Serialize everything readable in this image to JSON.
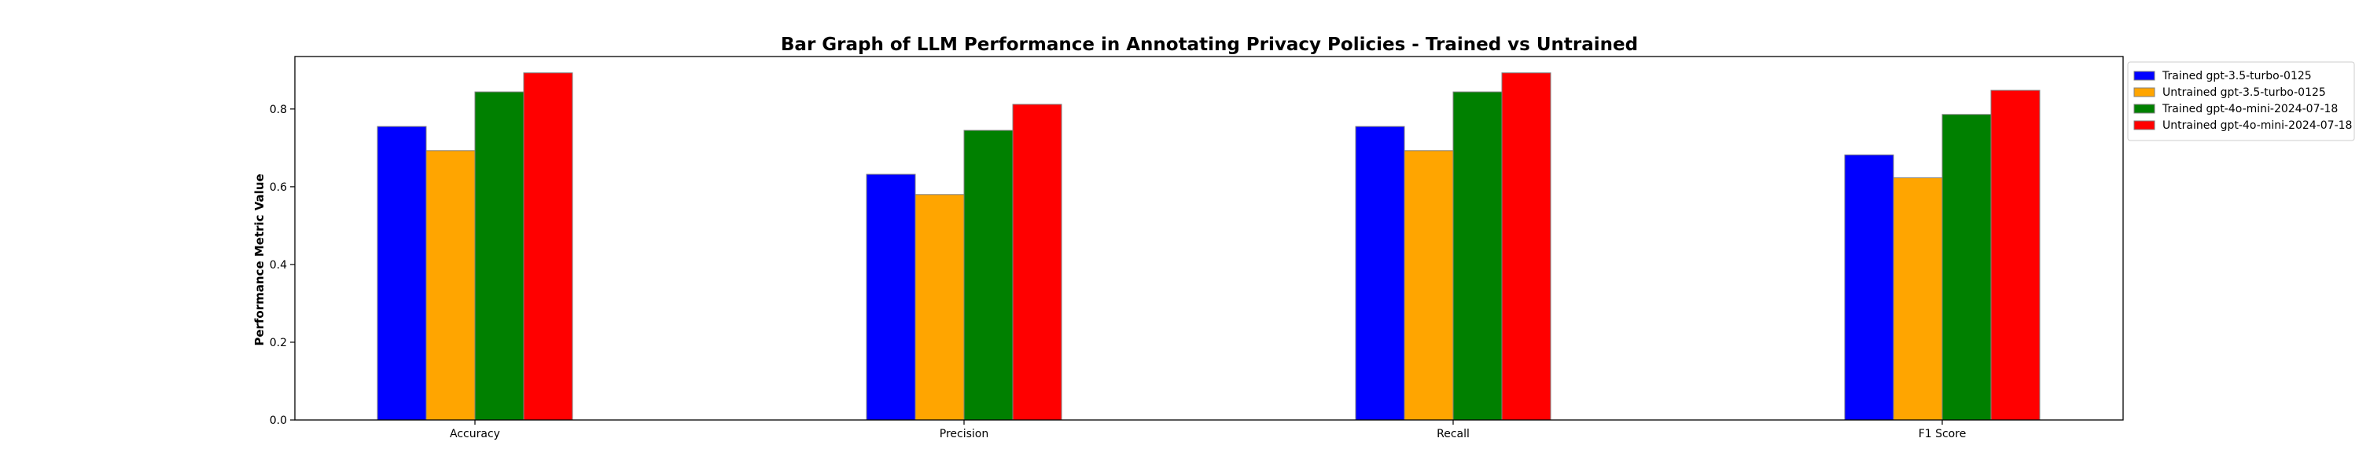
{
  "chart_data": {
    "type": "bar",
    "title": "Bar Graph of LLM Performance in Annotating Privacy Policies - Trained vs Untrained",
    "xlabel": "",
    "ylabel": "Performance Metric Value",
    "categories": [
      "Accuracy",
      "Precision",
      "Recall",
      "F1 Score"
    ],
    "ylim": [
      0,
      0.935
    ],
    "yticks": [
      "0.0",
      "0.2",
      "0.4",
      "0.6",
      "0.8"
    ],
    "grid": false,
    "legend_position": "outside-right-top",
    "series": [
      {
        "name": "Trained gpt-3.5-turbo-0125",
        "color": "#0000ff",
        "values": [
          0.755,
          0.632,
          0.755,
          0.682
        ]
      },
      {
        "name": "Untrained gpt-3.5-turbo-0125",
        "color": "#ffa500",
        "values": [
          0.693,
          0.58,
          0.693,
          0.623
        ]
      },
      {
        "name": "Trained gpt-4o-mini-2024-07-18",
        "color": "#008000",
        "values": [
          0.844,
          0.745,
          0.844,
          0.786
        ]
      },
      {
        "name": "Untrained gpt-4o-mini-2024-07-18",
        "color": "#ff0000",
        "values": [
          0.893,
          0.812,
          0.893,
          0.848
        ]
      }
    ]
  }
}
